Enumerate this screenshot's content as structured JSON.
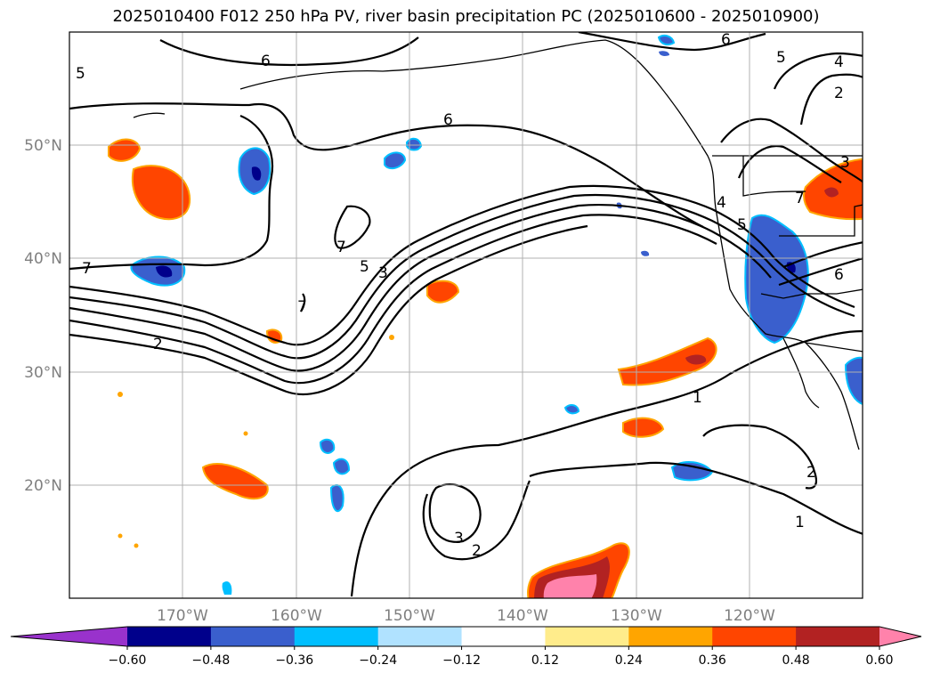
{
  "title": "2025010400 F012 250 hPa PV, river basin precipitation PC (2025010600 - 2025010900)",
  "map": {
    "projection": "equirectangular",
    "lon_range": [
      -180,
      -110
    ],
    "lat_range": [
      10,
      60
    ],
    "gridlines": true,
    "lat_ticks": [
      {
        "value": 20,
        "label": "20°N"
      },
      {
        "value": 30,
        "label": "30°N"
      },
      {
        "value": 40,
        "label": "40°N"
      },
      {
        "value": 50,
        "label": "50°N"
      }
    ],
    "lon_ticks": [
      {
        "value": -170,
        "label": "170°W"
      },
      {
        "value": -160,
        "label": "160°W"
      },
      {
        "value": -150,
        "label": "150°W"
      },
      {
        "value": -140,
        "label": "140°W"
      },
      {
        "value": -130,
        "label": "130°W"
      },
      {
        "value": -120,
        "label": "120°W"
      }
    ],
    "contour_labels": [
      "2",
      "3",
      "5",
      "6",
      "7",
      "1",
      "4"
    ]
  },
  "colorbar": {
    "levels": [
      "−0.60",
      "−0.48",
      "−0.36",
      "−0.24",
      "−0.12",
      "0.12",
      "0.24",
      "0.36",
      "0.48",
      "0.60"
    ],
    "colors": [
      "#9932cc",
      "#00008b",
      "#3a5fcd",
      "#00bfff",
      "#b0e2ff",
      "#ffffff",
      "#ffec8b",
      "#ffa500",
      "#ff4500",
      "#b22222",
      "#ff82ab"
    ],
    "extend": "both"
  }
}
